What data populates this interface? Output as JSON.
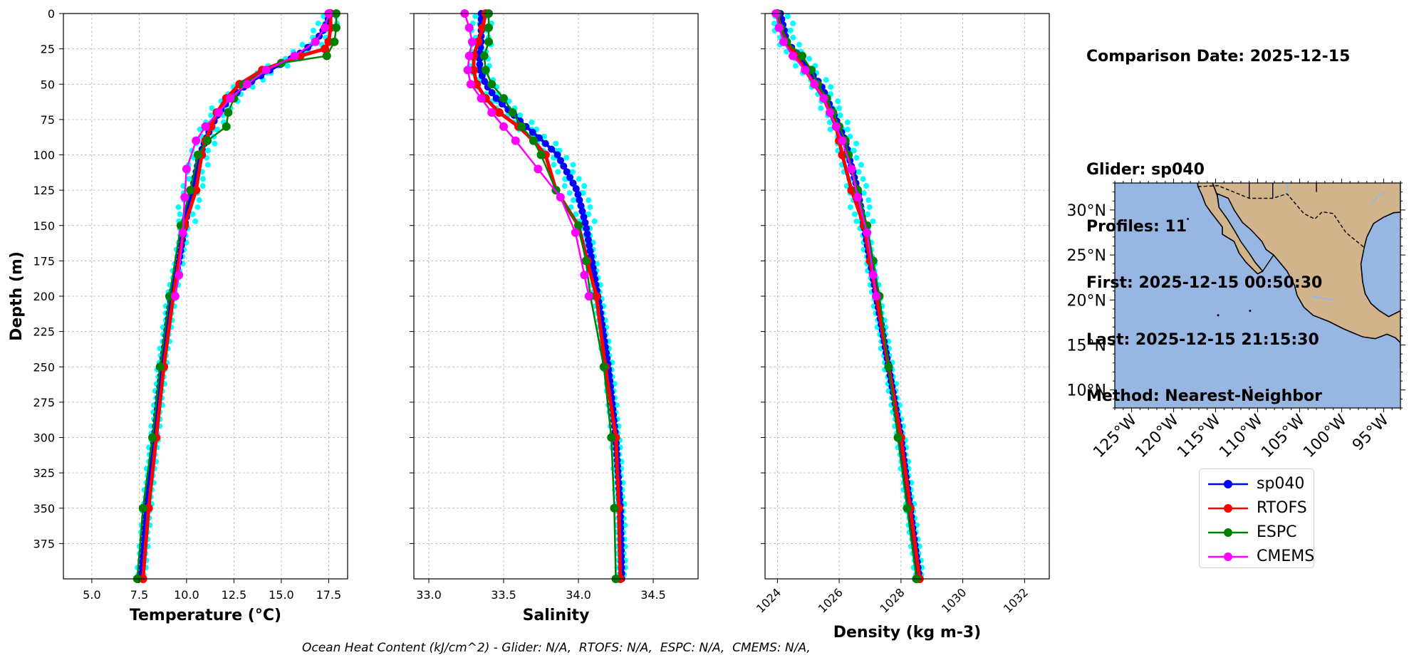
{
  "info": {
    "comparison_date": "Comparison Date: 2025-12-15",
    "glider": "Glider: sp040",
    "profiles": "Profiles: 11",
    "first": "First: 2025-12-15 00:50:30",
    "last": "Last: 2025-12-15 21:15:30",
    "method": "Method: Nearest-Neighbor"
  },
  "footer": "Ocean Heat Content (kJ/cm^2) - Glider: N/A,  RTOFS: N/A,  ESPC: N/A,  CMEMS: N/A,",
  "colors": {
    "sp040": "#0000ff",
    "glider_raw": "#00ffff",
    "RTOFS": "#ff0000",
    "ESPC": "#008000",
    "CMEMS": "#ff00ff",
    "ocean": "#97b6e1",
    "land": "#d2b48c",
    "grid": "#b0b0b0"
  },
  "legend": [
    {
      "label": "sp040",
      "color": "#0000ff"
    },
    {
      "label": "RTOFS",
      "color": "#ff0000"
    },
    {
      "label": "ESPC",
      "color": "#008000"
    },
    {
      "label": "CMEMS",
      "color": "#ff00ff"
    }
  ],
  "chart_data": [
    {
      "type": "line",
      "xlabel": "Temperature (°C)",
      "ylabel": "Depth (m)",
      "xlim": [
        3.5,
        18.5
      ],
      "ylim": [
        400,
        0
      ],
      "xticks": [
        5.0,
        7.5,
        10.0,
        12.5,
        15.0,
        17.5
      ],
      "yticks": [
        0,
        25,
        50,
        75,
        100,
        125,
        150,
        175,
        200,
        225,
        250,
        275,
        300,
        325,
        350,
        375
      ],
      "grid": true,
      "series": [
        {
          "name": "sp040",
          "y": [
            0,
            10,
            20,
            30,
            40,
            50,
            60,
            70,
            80,
            90,
            100,
            125,
            150,
            175,
            200,
            250,
            300,
            350,
            400
          ],
          "values": [
            17.6,
            17.3,
            16.8,
            15.8,
            14.4,
            13.2,
            12.3,
            11.7,
            11.3,
            11.0,
            10.7,
            10.3,
            9.9,
            9.6,
            9.2,
            8.7,
            8.3,
            7.9,
            7.6
          ]
        },
        {
          "name": "RTOFS",
          "y": [
            0,
            10,
            20,
            25,
            30,
            40,
            50,
            60,
            70,
            80,
            90,
            100,
            125,
            150,
            200,
            250,
            300,
            350,
            400
          ],
          "values": [
            17.6,
            17.6,
            17.5,
            17.3,
            16.0,
            14.0,
            12.8,
            12.1,
            11.6,
            11.3,
            11.0,
            10.8,
            10.5,
            9.9,
            9.3,
            8.8,
            8.4,
            8.0,
            7.7
          ]
        },
        {
          "name": "ESPC",
          "y": [
            0,
            10,
            20,
            30,
            35,
            40,
            50,
            60,
            70,
            80,
            90,
            100,
            125,
            150,
            200,
            250,
            300,
            350,
            400
          ],
          "values": [
            17.9,
            17.9,
            17.8,
            17.4,
            15.0,
            14.2,
            13.0,
            12.5,
            12.2,
            12.1,
            11.1,
            10.6,
            10.2,
            9.7,
            9.1,
            8.6,
            8.2,
            7.7,
            7.4
          ]
        },
        {
          "name": "CMEMS",
          "y": [
            0,
            10,
            20,
            30,
            40,
            50,
            60,
            70,
            80,
            90,
            110,
            130,
            155,
            185,
            200
          ],
          "values": [
            17.5,
            17.3,
            16.8,
            15.7,
            14.2,
            13.2,
            12.3,
            11.7,
            11.0,
            10.5,
            10.0,
            9.9,
            9.8,
            9.6,
            9.4
          ]
        }
      ]
    },
    {
      "type": "line",
      "xlabel": "Salinity",
      "ylabel": "",
      "xlim": [
        32.9,
        34.8
      ],
      "ylim": [
        400,
        0
      ],
      "xticks": [
        33.0,
        33.5,
        34.0,
        34.5
      ],
      "grid": true,
      "series": [
        {
          "name": "sp040",
          "y": [
            0,
            10,
            20,
            30,
            40,
            50,
            60,
            70,
            80,
            90,
            100,
            125,
            150,
            175,
            200,
            250,
            300,
            350,
            400
          ],
          "values": [
            33.35,
            33.35,
            33.35,
            33.34,
            33.34,
            33.38,
            33.45,
            33.55,
            33.65,
            33.76,
            33.86,
            33.99,
            34.05,
            34.09,
            34.13,
            34.2,
            34.25,
            34.28,
            34.29
          ]
        },
        {
          "name": "RTOFS",
          "y": [
            0,
            10,
            20,
            30,
            40,
            50,
            60,
            70,
            80,
            90,
            100,
            125,
            150,
            175,
            200,
            250,
            300,
            350,
            400
          ],
          "values": [
            33.38,
            33.36,
            33.33,
            33.3,
            33.3,
            33.32,
            33.38,
            33.47,
            33.6,
            33.7,
            33.78,
            33.85,
            34.0,
            34.06,
            34.12,
            34.18,
            34.25,
            34.27,
            34.28
          ]
        },
        {
          "name": "ESPC",
          "y": [
            0,
            10,
            20,
            30,
            40,
            50,
            60,
            70,
            80,
            90,
            100,
            125,
            150,
            175,
            200,
            250,
            300,
            350,
            400
          ],
          "values": [
            33.4,
            33.4,
            33.4,
            33.37,
            33.38,
            33.42,
            33.5,
            33.56,
            33.62,
            33.7,
            33.75,
            33.85,
            34.0,
            34.05,
            34.08,
            34.17,
            34.22,
            34.24,
            34.25
          ]
        },
        {
          "name": "CMEMS",
          "y": [
            0,
            10,
            20,
            30,
            40,
            50,
            60,
            70,
            80,
            90,
            110,
            130,
            155,
            185,
            200
          ],
          "values": [
            33.24,
            33.27,
            33.29,
            33.27,
            33.26,
            33.28,
            33.35,
            33.42,
            33.5,
            33.58,
            33.73,
            33.88,
            33.98,
            34.04,
            34.07
          ]
        }
      ]
    },
    {
      "type": "line",
      "xlabel": "Density (kg m-3)",
      "ylabel": "",
      "xlim": [
        1023.6,
        1032.8
      ],
      "ylim": [
        400,
        0
      ],
      "xticks": [
        1024,
        1026,
        1028,
        1030,
        1032
      ],
      "grid": true,
      "series": [
        {
          "name": "sp040",
          "y": [
            0,
            10,
            20,
            30,
            40,
            50,
            60,
            70,
            80,
            90,
            100,
            125,
            150,
            175,
            200,
            250,
            300,
            350,
            400
          ],
          "values": [
            1024.1,
            1024.2,
            1024.3,
            1024.7,
            1025.0,
            1025.4,
            1025.6,
            1025.8,
            1026.0,
            1026.2,
            1026.3,
            1026.6,
            1026.8,
            1027.0,
            1027.2,
            1027.6,
            1028.0,
            1028.3,
            1028.6
          ]
        },
        {
          "name": "RTOFS",
          "y": [
            0,
            10,
            20,
            30,
            40,
            50,
            60,
            70,
            80,
            90,
            100,
            125,
            150,
            175,
            200,
            250,
            300,
            350,
            400
          ],
          "values": [
            1024.0,
            1024.1,
            1024.3,
            1024.6,
            1024.9,
            1025.2,
            1025.5,
            1025.7,
            1025.9,
            1026.0,
            1026.1,
            1026.4,
            1026.8,
            1027.0,
            1027.2,
            1027.6,
            1028.0,
            1028.3,
            1028.6
          ]
        },
        {
          "name": "ESPC",
          "y": [
            0,
            10,
            20,
            30,
            40,
            50,
            60,
            70,
            80,
            90,
            100,
            125,
            150,
            175,
            200,
            250,
            300,
            350,
            400
          ],
          "values": [
            1024.0,
            1024.1,
            1024.3,
            1024.8,
            1025.1,
            1025.3,
            1025.6,
            1025.8,
            1026.0,
            1026.2,
            1026.3,
            1026.6,
            1026.9,
            1027.1,
            1027.3,
            1027.6,
            1027.9,
            1028.2,
            1028.5
          ]
        },
        {
          "name": "CMEMS",
          "y": [
            0,
            10,
            20,
            30,
            40,
            50,
            60,
            70,
            80,
            90,
            110,
            130,
            155,
            185,
            200
          ],
          "values": [
            1023.95,
            1024.05,
            1024.2,
            1024.5,
            1024.9,
            1025.2,
            1025.5,
            1025.7,
            1025.9,
            1026.1,
            1026.4,
            1026.6,
            1026.9,
            1027.1,
            1027.2
          ]
        }
      ]
    },
    {
      "type": "map",
      "region": "Mexico / Eastern Pacific",
      "lon_range": [
        -127,
        -93
      ],
      "lat_range": [
        8,
        33
      ],
      "xticks": [
        "125°W",
        "120°W",
        "115°W",
        "110°W",
        "105°W",
        "100°W",
        "95°W"
      ],
      "yticks": [
        "10°N",
        "15°N",
        "20°N",
        "25°N",
        "30°N"
      ]
    }
  ]
}
